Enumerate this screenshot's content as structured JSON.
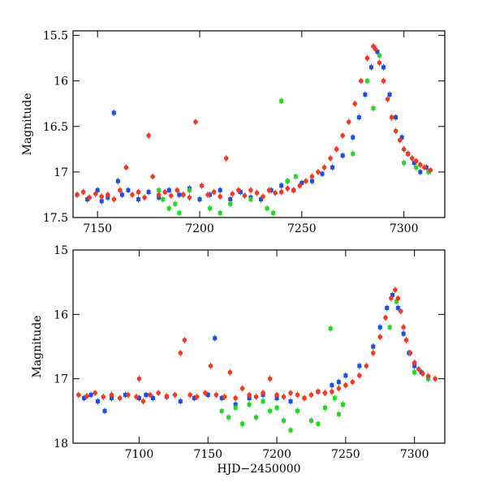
{
  "chart_data": [
    {
      "type": "scatter",
      "title": "",
      "xlabel": "",
      "ylabel": "Magnitude",
      "xlim": [
        7138,
        7320
      ],
      "ylim": [
        17.5,
        15.45
      ],
      "y_inverted": true,
      "xticks": [
        7150,
        7200,
        7250,
        7300
      ],
      "xtick_labels": [
        "7150",
        "7200",
        "7250",
        "7300"
      ],
      "yticks": [
        15.5,
        16,
        16.5,
        17,
        17.5
      ],
      "ytick_labels": [
        "15.5",
        "16",
        "16.5",
        "17",
        "17.5"
      ],
      "series": [
        {
          "name": "blue",
          "color": "#1a4fe0",
          "marker": "square",
          "points": [
            [
              7140,
              17.25
            ],
            [
              7145,
              17.3
            ],
            [
              7150,
              17.2
            ],
            [
              7152,
              17.32
            ],
            [
              7155,
              17.28
            ],
            [
              7158,
              16.35
            ],
            [
              7160,
              17.1
            ],
            [
              7162,
              17.25
            ],
            [
              7165,
              17.2
            ],
            [
              7170,
              17.3
            ],
            [
              7175,
              17.22
            ],
            [
              7180,
              17.28
            ],
            [
              7185,
              17.2
            ],
            [
              7190,
              17.25
            ],
            [
              7195,
              17.18
            ],
            [
              7200,
              17.3
            ],
            [
              7205,
              17.25
            ],
            [
              7210,
              17.2
            ],
            [
              7215,
              17.3
            ],
            [
              7220,
              17.22
            ],
            [
              7225,
              17.28
            ],
            [
              7230,
              17.3
            ],
            [
              7235,
              17.2
            ],
            [
              7240,
              17.15
            ],
            [
              7243,
              17.1
            ],
            [
              7246,
              17.2
            ],
            [
              7250,
              17.12
            ],
            [
              7255,
              17.1
            ],
            [
              7260,
              17.02
            ],
            [
              7265,
              16.95
            ],
            [
              7270,
              16.82
            ],
            [
              7275,
              16.62
            ],
            [
              7278,
              16.4
            ],
            [
              7281,
              16.15
            ],
            [
              7284,
              15.85
            ],
            [
              7287,
              15.68
            ],
            [
              7290,
              15.85
            ],
            [
              7293,
              16.15
            ],
            [
              7296,
              16.4
            ],
            [
              7299,
              16.62
            ],
            [
              7302,
              16.8
            ],
            [
              7305,
              16.9
            ],
            [
              7308,
              17.0
            ],
            [
              7311,
              16.95
            ]
          ]
        },
        {
          "name": "green",
          "color": "#2ad32a",
          "marker": "square",
          "points": [
            [
              7180,
              17.2
            ],
            [
              7182,
              17.3
            ],
            [
              7185,
              17.4
            ],
            [
              7188,
              17.35
            ],
            [
              7190,
              17.45
            ],
            [
              7192,
              17.25
            ],
            [
              7195,
              17.2
            ],
            [
              7205,
              17.4
            ],
            [
              7210,
              17.45
            ],
            [
              7215,
              17.35
            ],
            [
              7225,
              17.3
            ],
            [
              7233,
              17.4
            ],
            [
              7236,
              17.45
            ],
            [
              7240,
              16.22
            ],
            [
              7243,
              17.1
            ],
            [
              7247,
              17.05
            ],
            [
              7275,
              16.8
            ],
            [
              7282,
              16.0
            ],
            [
              7285,
              16.3
            ],
            [
              7288,
              15.72
            ],
            [
              7300,
              16.9
            ],
            [
              7306,
              16.95
            ],
            [
              7312,
              17.0
            ]
          ]
        },
        {
          "name": "red",
          "color": "#f03a22",
          "marker": "circle",
          "points": [
            [
              7140,
              17.25
            ],
            [
              7143,
              17.22
            ],
            [
              7146,
              17.28
            ],
            [
              7149,
              17.24
            ],
            [
              7152,
              17.27
            ],
            [
              7155,
              17.25
            ],
            [
              7158,
              17.3
            ],
            [
              7161,
              17.2
            ],
            [
              7164,
              16.95
            ],
            [
              7167,
              17.25
            ],
            [
              7170,
              17.22
            ],
            [
              7173,
              17.28
            ],
            [
              7175,
              16.6
            ],
            [
              7177,
              17.05
            ],
            [
              7180,
              17.25
            ],
            [
              7183,
              17.22
            ],
            [
              7186,
              17.26
            ],
            [
              7189,
              17.2
            ],
            [
              7192,
              17.25
            ],
            [
              7195,
              17.28
            ],
            [
              7198,
              16.45
            ],
            [
              7201,
              17.15
            ],
            [
              7204,
              17.25
            ],
            [
              7207,
              17.22
            ],
            [
              7210,
              17.27
            ],
            [
              7213,
              16.85
            ],
            [
              7216,
              17.24
            ],
            [
              7219,
              17.2
            ],
            [
              7222,
              17.26
            ],
            [
              7225,
              17.2
            ],
            [
              7228,
              17.23
            ],
            [
              7231,
              17.27
            ],
            [
              7234,
              17.2
            ],
            [
              7237,
              17.23
            ],
            [
              7240,
              17.22
            ],
            [
              7243,
              17.18
            ],
            [
              7246,
              17.2
            ],
            [
              7249,
              17.15
            ],
            [
              7252,
              17.1
            ],
            [
              7255,
              17.05
            ],
            [
              7258,
              17.0
            ],
            [
              7261,
              16.95
            ],
            [
              7264,
              16.85
            ],
            [
              7267,
              16.75
            ],
            [
              7270,
              16.6
            ],
            [
              7273,
              16.45
            ],
            [
              7276,
              16.25
            ],
            [
              7279,
              16.0
            ],
            [
              7282,
              15.75
            ],
            [
              7285,
              15.62
            ],
            [
              7286,
              15.65
            ],
            [
              7288,
              15.8
            ],
            [
              7290,
              16.0
            ],
            [
              7292,
              16.2
            ],
            [
              7294,
              16.4
            ],
            [
              7296,
              16.55
            ],
            [
              7298,
              16.65
            ],
            [
              7300,
              16.75
            ],
            [
              7302,
              16.8
            ],
            [
              7304,
              16.85
            ],
            [
              7306,
              16.88
            ],
            [
              7308,
              16.92
            ],
            [
              7310,
              16.95
            ],
            [
              7313,
              16.98
            ]
          ]
        }
      ]
    },
    {
      "type": "scatter",
      "title": "",
      "xlabel": "HJD−2450000",
      "ylabel": "Magnitude",
      "xlim": [
        7052,
        7322
      ],
      "ylim": [
        18.0,
        15.0
      ],
      "y_inverted": true,
      "xticks": [
        7100,
        7150,
        7200,
        7250,
        7300
      ],
      "xtick_labels": [
        "7100",
        "7150",
        "7200",
        "7250",
        "7300"
      ],
      "yticks": [
        15,
        16,
        17,
        18
      ],
      "ytick_labels": [
        "15",
        "16",
        "17",
        "18"
      ],
      "series": [
        {
          "name": "blue",
          "color": "#1a4fe0",
          "marker": "square",
          "points": [
            [
              7060,
              17.3
            ],
            [
              7065,
              17.25
            ],
            [
              7070,
              17.35
            ],
            [
              7075,
              17.5
            ],
            [
              7080,
              17.3
            ],
            [
              7090,
              17.25
            ],
            [
              7100,
              17.3
            ],
            [
              7105,
              17.25
            ],
            [
              7110,
              17.3
            ],
            [
              7120,
              17.28
            ],
            [
              7130,
              17.35
            ],
            [
              7140,
              17.3
            ],
            [
              7150,
              17.25
            ],
            [
              7155,
              16.37
            ],
            [
              7160,
              17.3
            ],
            [
              7170,
              17.4
            ],
            [
              7180,
              17.3
            ],
            [
              7190,
              17.25
            ],
            [
              7200,
              17.3
            ],
            [
              7210,
              17.35
            ],
            [
              7220,
              17.3
            ],
            [
              7230,
              17.2
            ],
            [
              7240,
              17.1
            ],
            [
              7245,
              17.05
            ],
            [
              7250,
              16.95
            ],
            [
              7260,
              16.8
            ],
            [
              7270,
              16.5
            ],
            [
              7275,
              16.2
            ],
            [
              7280,
              15.9
            ],
            [
              7284,
              15.7
            ],
            [
              7288,
              15.9
            ],
            [
              7292,
              16.3
            ],
            [
              7296,
              16.6
            ],
            [
              7300,
              16.8
            ],
            [
              7305,
              16.9
            ],
            [
              7310,
              17.0
            ]
          ]
        },
        {
          "name": "green",
          "color": "#2ad32a",
          "marker": "square",
          "points": [
            [
              7160,
              17.5
            ],
            [
              7165,
              17.6
            ],
            [
              7170,
              17.45
            ],
            [
              7175,
              17.7
            ],
            [
              7180,
              17.4
            ],
            [
              7185,
              17.6
            ],
            [
              7190,
              17.35
            ],
            [
              7195,
              17.5
            ],
            [
              7200,
              17.45
            ],
            [
              7205,
              17.65
            ],
            [
              7210,
              17.8
            ],
            [
              7215,
              17.5
            ],
            [
              7220,
              17.3
            ],
            [
              7225,
              17.65
            ],
            [
              7230,
              17.7
            ],
            [
              7235,
              17.45
            ],
            [
              7239,
              16.22
            ],
            [
              7242,
              17.3
            ],
            [
              7245,
              17.55
            ],
            [
              7248,
              17.4
            ],
            [
              7282,
              16.2
            ],
            [
              7287,
              15.8
            ],
            [
              7300,
              16.9
            ],
            [
              7310,
              17.0
            ]
          ]
        },
        {
          "name": "red",
          "color": "#f03a22",
          "marker": "circle",
          "points": [
            [
              7056,
              17.25
            ],
            [
              7062,
              17.27
            ],
            [
              7068,
              17.22
            ],
            [
              7074,
              17.28
            ],
            [
              7080,
              17.25
            ],
            [
              7086,
              17.3
            ],
            [
              7092,
              17.25
            ],
            [
              7098,
              17.28
            ],
            [
              7100,
              17.0
            ],
            [
              7103,
              17.35
            ],
            [
              7108,
              17.25
            ],
            [
              7114,
              17.22
            ],
            [
              7120,
              17.27
            ],
            [
              7126,
              17.25
            ],
            [
              7130,
              16.6
            ],
            [
              7133,
              16.4
            ],
            [
              7137,
              17.25
            ],
            [
              7142,
              17.28
            ],
            [
              7148,
              17.22
            ],
            [
              7152,
              16.8
            ],
            [
              7156,
              17.25
            ],
            [
              7162,
              17.28
            ],
            [
              7166,
              16.9
            ],
            [
              7170,
              17.3
            ],
            [
              7175,
              17.15
            ],
            [
              7180,
              17.25
            ],
            [
              7185,
              17.28
            ],
            [
              7190,
              17.22
            ],
            [
              7195,
              17.0
            ],
            [
              7200,
              17.25
            ],
            [
              7205,
              17.28
            ],
            [
              7210,
              17.22
            ],
            [
              7215,
              17.25
            ],
            [
              7220,
              17.3
            ],
            [
              7225,
              17.25
            ],
            [
              7230,
              17.2
            ],
            [
              7235,
              17.22
            ],
            [
              7240,
              17.2
            ],
            [
              7245,
              17.15
            ],
            [
              7250,
              17.1
            ],
            [
              7255,
              17.05
            ],
            [
              7260,
              16.95
            ],
            [
              7265,
              16.8
            ],
            [
              7270,
              16.6
            ],
            [
              7275,
              16.35
            ],
            [
              7279,
              16.05
            ],
            [
              7283,
              15.75
            ],
            [
              7286,
              15.62
            ],
            [
              7288,
              15.75
            ],
            [
              7290,
              15.95
            ],
            [
              7292,
              16.2
            ],
            [
              7294,
              16.4
            ],
            [
              7297,
              16.6
            ],
            [
              7300,
              16.75
            ],
            [
              7303,
              16.85
            ],
            [
              7306,
              16.92
            ],
            [
              7310,
              16.96
            ],
            [
              7315,
              17.0
            ]
          ]
        }
      ]
    }
  ]
}
